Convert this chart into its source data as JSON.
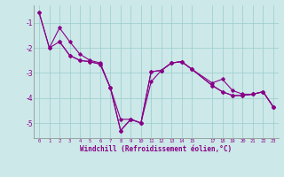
{
  "xlabel": "Windchill (Refroidissement éolien,°C)",
  "background_color": "#cce8e8",
  "grid_color": "#99cccc",
  "line_color": "#880088",
  "xlim": [
    -0.5,
    23.5
  ],
  "ylim": [
    -5.6,
    -0.3
  ],
  "xticks": [
    0,
    1,
    2,
    3,
    4,
    5,
    6,
    7,
    8,
    9,
    10,
    11,
    12,
    13,
    14,
    15,
    17,
    18,
    19,
    20,
    21,
    22,
    23
  ],
  "yticks": [
    -5,
    -4,
    -3,
    -2,
    -1
  ],
  "s1_x": [
    0,
    1,
    2,
    3,
    4,
    5,
    6,
    7,
    8,
    9,
    10,
    11,
    12,
    13,
    14,
    15,
    17,
    18,
    19,
    20,
    21,
    22,
    23
  ],
  "s1_y": [
    -0.6,
    -2.0,
    -1.75,
    -2.3,
    -2.5,
    -2.55,
    -2.65,
    -3.6,
    -5.3,
    -4.85,
    -5.0,
    -2.95,
    -2.9,
    -2.6,
    -2.55,
    -2.85,
    -3.5,
    -3.75,
    -3.9,
    -3.9,
    -3.85,
    -3.75,
    -4.35
  ],
  "s2_x": [
    0,
    1,
    2,
    3,
    4,
    5,
    6,
    7,
    8,
    9,
    10,
    11,
    12,
    13,
    14,
    15,
    17,
    18,
    19,
    20,
    21,
    22,
    23
  ],
  "s2_y": [
    -0.6,
    -2.0,
    -1.2,
    -1.75,
    -2.25,
    -2.5,
    -2.6,
    -3.6,
    -5.3,
    -4.85,
    -5.0,
    -3.35,
    -2.9,
    -2.6,
    -2.55,
    -2.85,
    -3.5,
    -3.75,
    -3.9,
    -3.9,
    -3.85,
    -3.75,
    -4.35
  ],
  "s3_x": [
    2,
    3,
    4,
    5,
    6,
    7,
    8,
    9,
    10,
    11,
    12,
    13,
    14,
    15,
    17,
    18,
    19,
    20,
    21,
    22,
    23
  ],
  "s3_y": [
    -1.75,
    -2.3,
    -2.5,
    -2.55,
    -2.65,
    -3.6,
    -4.85,
    -4.85,
    -5.0,
    -2.95,
    -2.9,
    -2.6,
    -2.55,
    -2.85,
    -3.4,
    -3.25,
    -3.7,
    -3.85,
    -3.85,
    -3.75,
    -4.35
  ]
}
